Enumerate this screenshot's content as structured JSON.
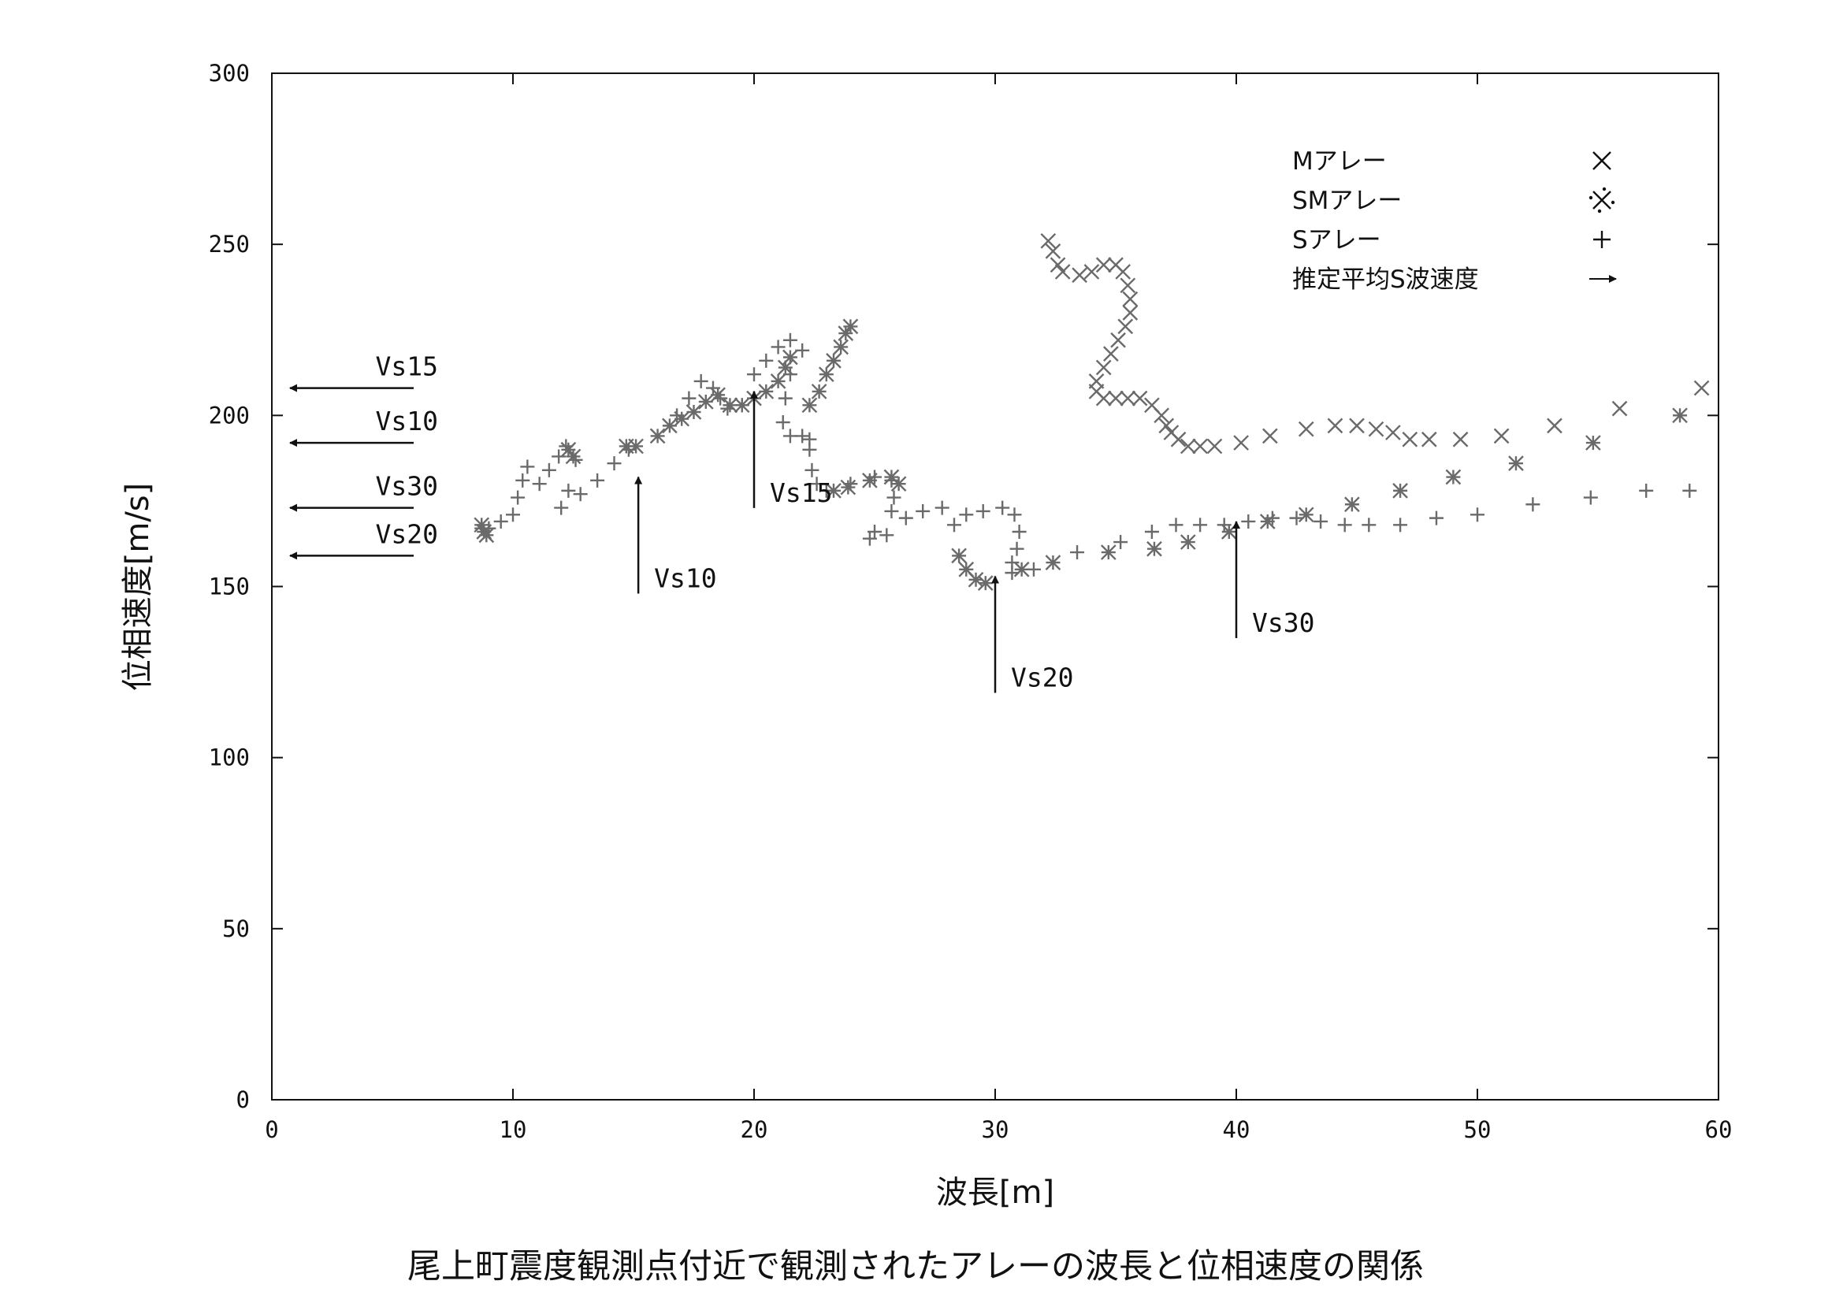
{
  "caption": "尾上町震度観測点付近で観測されたアレーの波長と位相速度の関係",
  "chart_data": {
    "type": "scatter",
    "xlabel": "波長[m]",
    "ylabel": "位相速度[m/s]",
    "xlim": [
      0,
      60
    ],
    "ylim": [
      0,
      300
    ],
    "xticks": [
      0,
      10,
      20,
      30,
      40,
      50,
      60
    ],
    "yticks": [
      0,
      50,
      100,
      150,
      200,
      250,
      300
    ],
    "grid": false,
    "legend_position": "top-right",
    "legend": [
      {
        "label": "Mアレー",
        "symbol": "×",
        "marker": "x"
      },
      {
        "label": "SMアレー",
        "symbol": "※",
        "marker": "asterisk"
      },
      {
        "label": "Sアレー",
        "symbol": "+",
        "marker": "plus"
      },
      {
        "label": "推定平均S波速度",
        "symbol": "→",
        "marker": "arrow"
      }
    ],
    "series": [
      {
        "name": "Mアレー",
        "marker": "x",
        "points": [
          [
            32.2,
            251
          ],
          [
            32.4,
            248
          ],
          [
            32.6,
            244
          ],
          [
            32.8,
            242
          ],
          [
            33.5,
            241
          ],
          [
            34.0,
            242
          ],
          [
            34.5,
            244
          ],
          [
            35.0,
            244
          ],
          [
            35.3,
            242
          ],
          [
            35.5,
            238
          ],
          [
            35.6,
            234
          ],
          [
            35.6,
            230
          ],
          [
            35.4,
            226
          ],
          [
            35.1,
            222
          ],
          [
            34.8,
            218
          ],
          [
            34.5,
            214
          ],
          [
            34.2,
            210
          ],
          [
            34.2,
            207
          ],
          [
            34.5,
            205
          ],
          [
            35.0,
            205
          ],
          [
            35.5,
            205
          ],
          [
            36.0,
            205
          ],
          [
            36.5,
            203
          ],
          [
            36.9,
            200
          ],
          [
            37.1,
            197
          ],
          [
            37.3,
            195
          ],
          [
            37.6,
            193
          ],
          [
            38.0,
            191
          ],
          [
            38.5,
            191
          ],
          [
            39.1,
            191
          ],
          [
            40.2,
            192
          ],
          [
            41.4,
            194
          ],
          [
            42.9,
            196
          ],
          [
            44.1,
            197
          ],
          [
            45.0,
            197
          ],
          [
            45.8,
            196
          ],
          [
            46.5,
            195
          ],
          [
            47.2,
            193
          ],
          [
            48.0,
            193
          ],
          [
            49.3,
            193
          ],
          [
            51.0,
            194
          ],
          [
            53.2,
            197
          ],
          [
            55.9,
            202
          ],
          [
            59.3,
            208
          ]
        ]
      },
      {
        "name": "SMアレー",
        "marker": "asterisk",
        "points": [
          [
            8.7,
            168
          ],
          [
            8.8,
            166
          ],
          [
            8.9,
            165
          ],
          [
            12.3,
            190
          ],
          [
            12.5,
            188
          ],
          [
            14.7,
            191
          ],
          [
            15.1,
            191
          ],
          [
            16.0,
            194
          ],
          [
            16.5,
            197
          ],
          [
            17.0,
            199
          ],
          [
            17.5,
            201
          ],
          [
            18.0,
            204
          ],
          [
            18.5,
            206
          ],
          [
            19.0,
            203
          ],
          [
            19.5,
            203
          ],
          [
            20.0,
            205
          ],
          [
            20.5,
            207
          ],
          [
            21.0,
            210
          ],
          [
            21.3,
            214
          ],
          [
            21.5,
            217
          ],
          [
            22.3,
            203
          ],
          [
            22.7,
            207
          ],
          [
            23.0,
            212
          ],
          [
            23.3,
            216
          ],
          [
            23.6,
            220
          ],
          [
            23.8,
            224
          ],
          [
            24.0,
            226
          ],
          [
            23.3,
            178
          ],
          [
            23.9,
            179
          ],
          [
            24.8,
            181
          ],
          [
            25.7,
            182
          ],
          [
            26.0,
            180
          ],
          [
            28.5,
            159
          ],
          [
            28.8,
            155
          ],
          [
            29.2,
            152
          ],
          [
            29.6,
            151
          ],
          [
            31.1,
            155
          ],
          [
            32.4,
            157
          ],
          [
            34.7,
            160
          ],
          [
            36.6,
            161
          ],
          [
            38.0,
            163
          ],
          [
            39.7,
            166
          ],
          [
            41.3,
            169
          ],
          [
            42.9,
            171
          ],
          [
            44.8,
            174
          ],
          [
            46.8,
            178
          ],
          [
            49.0,
            182
          ],
          [
            51.6,
            186
          ],
          [
            54.8,
            192
          ],
          [
            58.4,
            200
          ]
        ]
      },
      {
        "name": "Sアレー",
        "marker": "plus",
        "points": [
          [
            8.7,
            167
          ],
          [
            9.0,
            167
          ],
          [
            9.5,
            169
          ],
          [
            10.0,
            171
          ],
          [
            10.2,
            176
          ],
          [
            10.4,
            181
          ],
          [
            10.6,
            185
          ],
          [
            11.1,
            180
          ],
          [
            11.5,
            184
          ],
          [
            11.9,
            188
          ],
          [
            12.2,
            191
          ],
          [
            12.6,
            187
          ],
          [
            12.3,
            178
          ],
          [
            12.0,
            173
          ],
          [
            12.8,
            177
          ],
          [
            13.5,
            181
          ],
          [
            14.2,
            186
          ],
          [
            14.8,
            190
          ],
          [
            16.8,
            200
          ],
          [
            17.3,
            205
          ],
          [
            17.8,
            210
          ],
          [
            18.3,
            208
          ],
          [
            18.6,
            205
          ],
          [
            18.9,
            202
          ],
          [
            19.5,
            203
          ],
          [
            20.0,
            212
          ],
          [
            20.5,
            216
          ],
          [
            21.0,
            220
          ],
          [
            21.5,
            222
          ],
          [
            22.0,
            219
          ],
          [
            21.5,
            212
          ],
          [
            21.3,
            205
          ],
          [
            21.2,
            198
          ],
          [
            21.5,
            194
          ],
          [
            22.0,
            194
          ],
          [
            22.3,
            193
          ],
          [
            22.3,
            190
          ],
          [
            22.4,
            184
          ],
          [
            22.6,
            180
          ],
          [
            23.0,
            178
          ],
          [
            24.0,
            180
          ],
          [
            25.0,
            182
          ],
          [
            25.7,
            181
          ],
          [
            25.8,
            176
          ],
          [
            25.7,
            172
          ],
          [
            25.0,
            166
          ],
          [
            24.8,
            164
          ],
          [
            25.5,
            165
          ],
          [
            26.3,
            170
          ],
          [
            27.0,
            172
          ],
          [
            27.8,
            173
          ],
          [
            28.3,
            168
          ],
          [
            28.8,
            171
          ],
          [
            29.5,
            172
          ],
          [
            30.3,
            173
          ],
          [
            30.8,
            171
          ],
          [
            31.0,
            166
          ],
          [
            30.9,
            161
          ],
          [
            30.7,
            157
          ],
          [
            30.7,
            154
          ],
          [
            31.6,
            155
          ],
          [
            33.4,
            160
          ],
          [
            35.2,
            163
          ],
          [
            36.5,
            166
          ],
          [
            37.5,
            168
          ],
          [
            38.5,
            168
          ],
          [
            39.5,
            168
          ],
          [
            40.5,
            169
          ],
          [
            41.5,
            170
          ],
          [
            42.5,
            170
          ],
          [
            43.5,
            169
          ],
          [
            44.5,
            168
          ],
          [
            45.5,
            168
          ],
          [
            46.8,
            168
          ],
          [
            48.3,
            170
          ],
          [
            50.0,
            171
          ],
          [
            52.3,
            174
          ],
          [
            54.7,
            176
          ],
          [
            57.0,
            178
          ],
          [
            58.8,
            178
          ]
        ]
      }
    ],
    "vertical_arrows": [
      {
        "label": "Vs10",
        "x": 15.2,
        "y_top": 182
      },
      {
        "label": "Vs15",
        "x": 20.0,
        "y_top": 207
      },
      {
        "label": "Vs20",
        "x": 30.0,
        "y_top": 153
      },
      {
        "label": "Vs30",
        "x": 40.0,
        "y_top": 169
      }
    ],
    "horizontal_arrows": [
      {
        "label": "Vs15",
        "y": 208
      },
      {
        "label": "Vs10",
        "y": 192
      },
      {
        "label": "Vs30",
        "y": 173
      },
      {
        "label": "Vs20",
        "y": 159
      }
    ]
  }
}
